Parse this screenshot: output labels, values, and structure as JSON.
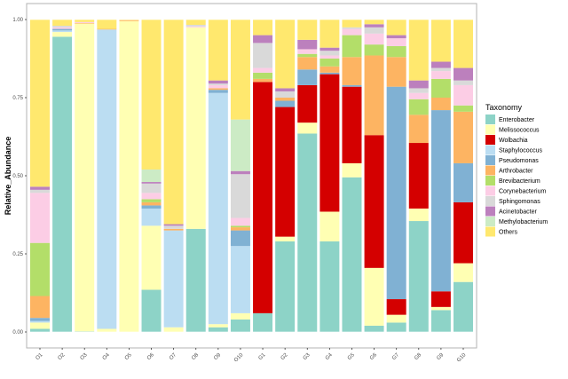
{
  "chart_data": {
    "type": "bar",
    "stacked": true,
    "title": "",
    "xlabel": "",
    "ylabel": "Relative_Abundance",
    "ylim": [
      0,
      1
    ],
    "yticks": [
      "0.00",
      "0.25",
      "0.50",
      "0.75",
      "1.00"
    ],
    "ytick_values": [
      0,
      0.25,
      0.5,
      0.75,
      1
    ],
    "grid": false,
    "legend": {
      "title": "Taxonomy",
      "placement": "right"
    },
    "categories": [
      "O1",
      "O2",
      "O3",
      "O4",
      "O5",
      "O6",
      "O7",
      "O8",
      "O9",
      "O10",
      "G1",
      "G2",
      "G3",
      "G4",
      "G5",
      "G6",
      "G7",
      "G8",
      "G9",
      "G10"
    ],
    "series": [
      {
        "name": "Enterobacter",
        "color": "#8DD3C7",
        "values": [
          0.01,
          0.945,
          0.002,
          0,
          0,
          0.135,
          0,
          0.33,
          0.015,
          0.04,
          0.06,
          0.29,
          0.635,
          0.29,
          0.495,
          0.02,
          0.03,
          0.355,
          0.07,
          0.16
        ]
      },
      {
        "name": "Melissococcus",
        "color": "#FFFFB3",
        "values": [
          0.02,
          0.015,
          0.985,
          0.01,
          0.995,
          0.205,
          0.015,
          0.645,
          0.01,
          0.02,
          0,
          0.015,
          0.035,
          0.095,
          0.045,
          0.185,
          0.025,
          0.04,
          0.01,
          0.06
        ]
      },
      {
        "name": "Wolbachia",
        "color": "#D40000",
        "values": [
          0,
          0,
          0,
          0,
          0,
          0,
          0,
          0,
          0,
          0,
          0.74,
          0.415,
          0.12,
          0.44,
          0.245,
          0.425,
          0.05,
          0.21,
          0.05,
          0.195
        ]
      },
      {
        "name": "Staphylococcus",
        "color": "#BBDDF2",
        "values": [
          0.005,
          0.005,
          0,
          0.958,
          0,
          0.055,
          0.31,
          0,
          0.74,
          0.215,
          0,
          0,
          0,
          0,
          0,
          0,
          0,
          0,
          0,
          0
        ]
      },
      {
        "name": "Pseudomonas",
        "color": "#80B1D3",
        "values": [
          0.01,
          0.005,
          0,
          0,
          0,
          0.01,
          0,
          0,
          0.01,
          0.05,
          0,
          0.02,
          0.05,
          0.005,
          0.005,
          0,
          0.68,
          0,
          0.58,
          0.125
        ]
      },
      {
        "name": "Arthrobacter",
        "color": "#FDB462",
        "values": [
          0.07,
          0,
          0.002,
          0.002,
          0.003,
          0.01,
          0.005,
          0,
          0.005,
          0.01,
          0.01,
          0.01,
          0.04,
          0.02,
          0.09,
          0.255,
          0.095,
          0.09,
          0.04,
          0.165
        ]
      },
      {
        "name": "Brevibacterium",
        "color": "#B3DE69",
        "values": [
          0.17,
          0,
          0,
          0,
          0,
          0.01,
          0,
          0,
          0,
          0.005,
          0.02,
          0,
          0.01,
          0.025,
          0.07,
          0.035,
          0.035,
          0.05,
          0.06,
          0.02
        ]
      },
      {
        "name": "Corynebacterium",
        "color": "#FCCDE5",
        "values": [
          0.16,
          0.005,
          0.003,
          0,
          0,
          0.02,
          0,
          0.003,
          0.01,
          0.025,
          0.015,
          0,
          0.015,
          0.01,
          0.02,
          0.035,
          0.025,
          0.02,
          0.025,
          0.065
        ]
      },
      {
        "name": "Sphingomonas",
        "color": "#D9D9D9",
        "values": [
          0.01,
          0.005,
          0,
          0,
          0,
          0.03,
          0.01,
          0.005,
          0.005,
          0.14,
          0.08,
          0.02,
          0,
          0.015,
          0.005,
          0.02,
          0,
          0.015,
          0.01,
          0.015
        ]
      },
      {
        "name": "Acinetobacter",
        "color": "#BC80BD",
        "values": [
          0.01,
          0,
          0,
          0,
          0,
          0.005,
          0.005,
          0,
          0.01,
          0.01,
          0.025,
          0.01,
          0.03,
          0.01,
          0,
          0.01,
          0.01,
          0.025,
          0.02,
          0.04
        ]
      },
      {
        "name": "Methylobacterium",
        "color": "#CCEBC5",
        "values": [
          0,
          0,
          0,
          0,
          0,
          0.04,
          0,
          0,
          0,
          0.165,
          0,
          0,
          0,
          0,
          0,
          0,
          0,
          0,
          0,
          0
        ]
      },
      {
        "name": "Others",
        "color": "#FFE86E",
        "values": [
          0.535,
          0.02,
          0.008,
          0.03,
          0.002,
          0.48,
          0.655,
          0.017,
          0.195,
          0.32,
          0.05,
          0.22,
          0.065,
          0.09,
          0.025,
          0.015,
          0.05,
          0.195,
          0.135,
          0.155
        ]
      }
    ]
  }
}
